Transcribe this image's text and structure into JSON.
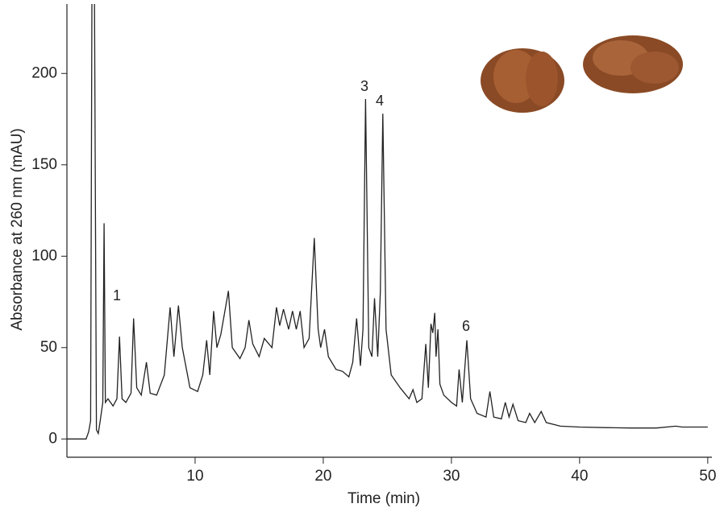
{
  "chart_data": {
    "type": "line",
    "xlabel": "Time (min)",
    "ylabel": "Absorbance at 260 nm (mAU)",
    "annotations": [
      "1",
      "3",
      "4",
      "6"
    ],
    "xlim": [
      0,
      50.2
    ],
    "xticks": [
      10,
      20,
      30,
      40,
      50
    ],
    "ylim": [
      -10,
      238
    ],
    "yticks": [
      0,
      50,
      100,
      150,
      200
    ],
    "x": [
      0,
      1.5,
      1.7,
      1.85,
      1.95,
      2.15,
      2.3,
      2.45,
      2.6,
      2.8,
      2.9,
      3.0,
      3.2,
      3.6,
      3.9,
      4.1,
      4.3,
      4.6,
      5.0,
      5.2,
      5.45,
      5.8,
      6.2,
      6.5,
      7.0,
      7.6,
      8.05,
      8.35,
      8.7,
      9.0,
      9.6,
      10.2,
      10.6,
      10.9,
      11.15,
      11.45,
      11.7,
      12.0,
      12.6,
      12.9,
      13.5,
      13.9,
      14.2,
      14.5,
      15.0,
      15.4,
      16.0,
      16.35,
      16.6,
      16.9,
      17.3,
      17.6,
      17.9,
      18.2,
      18.5,
      18.9,
      19.3,
      19.6,
      19.8,
      20.1,
      20.4,
      21.0,
      21.5,
      22.0,
      22.3,
      22.6,
      22.9,
      23.1,
      23.3,
      23.55,
      23.8,
      24.0,
      24.25,
      24.45,
      24.65,
      24.9,
      25.3,
      26.0,
      26.7,
      27.0,
      27.3,
      27.7,
      28.0,
      28.2,
      28.4,
      28.55,
      28.7,
      28.8,
      28.95,
      29.1,
      29.4,
      30.0,
      30.4,
      30.6,
      30.85,
      31.2,
      31.5,
      32.0,
      32.7,
      33.0,
      33.3,
      33.9,
      34.2,
      34.5,
      34.8,
      35.2,
      35.8,
      36.1,
      36.5,
      37.0,
      37.4,
      38.5,
      40,
      42,
      44,
      46,
      47.5,
      48,
      50
    ],
    "series": [
      {
        "color": "#222222",
        "values": [
          0,
          0,
          4,
          10,
          240,
          240,
          5,
          3,
          10,
          20,
          118,
          20,
          22,
          18,
          22,
          56,
          22,
          20,
          25,
          66,
          28,
          24,
          42,
          25,
          24,
          35,
          72,
          45,
          73,
          50,
          28,
          26,
          35,
          54,
          35,
          70,
          50,
          57,
          81,
          50,
          44,
          50,
          65,
          52,
          45,
          55,
          50,
          72,
          62,
          71,
          60,
          70,
          60,
          70,
          50,
          55,
          110,
          60,
          50,
          60,
          45,
          38,
          37,
          34,
          42,
          66,
          40,
          60,
          186,
          50,
          45,
          77,
          45,
          80,
          178,
          60,
          35,
          28,
          22,
          27,
          20,
          22,
          52,
          28,
          63,
          58,
          69,
          45,
          60,
          30,
          24,
          20,
          18,
          38,
          20,
          54,
          22,
          14,
          12,
          26,
          12,
          11,
          20,
          12,
          19,
          10,
          9,
          14,
          9,
          15,
          9,
          7,
          6.5,
          6.2,
          6,
          6,
          7,
          6.5,
          6.5
        ]
      }
    ]
  }
}
